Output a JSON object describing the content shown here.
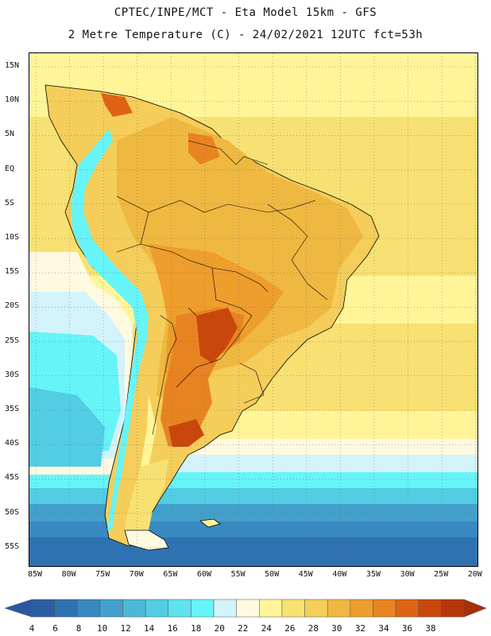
{
  "header": {
    "line1": "CPTEC/INPE/MCT -  Eta Model 15km - GFS",
    "line2": "2 Metre Temperature (C) - 24/02/2021 12UTC fct=53h"
  },
  "map": {
    "region": "South America",
    "latitude_labels": [
      "15N",
      "10N",
      "5N",
      "EQ",
      "5S",
      "10S",
      "15S",
      "20S",
      "25S",
      "30S",
      "35S",
      "40S",
      "45S",
      "50S",
      "55S"
    ],
    "longitude_labels": [
      "85W",
      "80W",
      "75W",
      "70W",
      "65W",
      "60W",
      "55W",
      "50W",
      "45W",
      "40W",
      "35W",
      "30W",
      "25W",
      "20W"
    ],
    "grid": "dotted"
  },
  "legend": {
    "labels": [
      "4",
      "6",
      "8",
      "10",
      "12",
      "14",
      "16",
      "18",
      "20",
      "22",
      "24",
      "26",
      "28",
      "30",
      "32",
      "34",
      "36",
      "38"
    ],
    "colors": [
      "#2b5ea4",
      "#2f72b2",
      "#3889c0",
      "#43a0cc",
      "#4cb8d8",
      "#52cde4",
      "#5ee2ee",
      "#66f4f8",
      "#d3f3fb",
      "#fff9e0",
      "#fff598",
      "#f8e173",
      "#f4cd5a",
      "#efb841",
      "#ee9e2c",
      "#e88322",
      "#de6414",
      "#c9470c",
      "#b5370a"
    ],
    "min_arrow_color": "#2a58a0",
    "max_arrow_color": "#a63008"
  }
}
